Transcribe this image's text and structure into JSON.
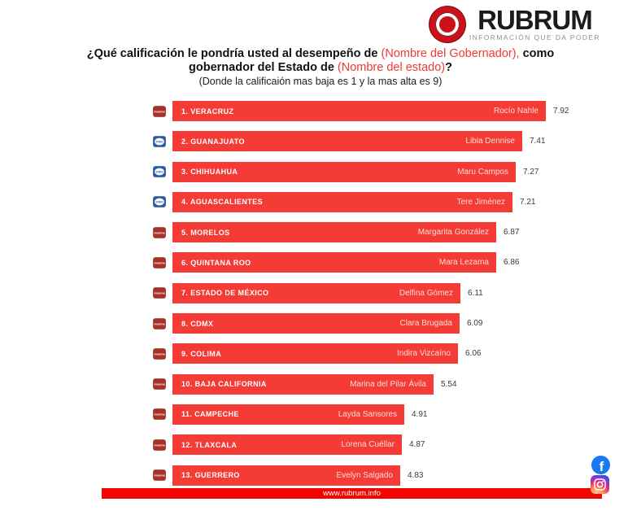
{
  "brand": {
    "name": "RUBRUM",
    "tagline": "INFORMACIÓN QUE DA PODER"
  },
  "title": {
    "seg1": "¿Qué calificación le pondría usted al desempeño de ",
    "highlight1": "(Nombre del Gobernador),",
    "seg2": " como gobernador del Estado de ",
    "highlight2": "(Nombre del estado)",
    "seg3": "?",
    "subtitle": "(Donde la calificaión mas baja es 1 y la mas alta es 9)"
  },
  "colors": {
    "bar_red": "#f53b35",
    "highlight_red": "#ed3b36",
    "footer_red": "#f20500",
    "logo_red": "#c9121a",
    "morena_red": "#a93226",
    "pan_blue": "#2b5da7",
    "facebook_blue": "#1877f2"
  },
  "chart_data": {
    "type": "bar",
    "orientation": "horizontal",
    "title": "¿Qué calificación le pondría usted al desempeño de (Nombre del Gobernador), como gobernador del Estado de (Nombre del estado)?",
    "subtitle": "(Donde la calificaión mas baja es 1 y la mas alta es 9)",
    "value_range": [
      1,
      9
    ],
    "rows": [
      {
        "rank": 1,
        "state": "1. VERACRUZ",
        "governor": "Rocío Nahle",
        "value": 7.92,
        "party": "morena"
      },
      {
        "rank": 2,
        "state": "2. GUANAJUATO",
        "governor": "Libia Dennise",
        "value": 7.41,
        "party": "pan"
      },
      {
        "rank": 3,
        "state": "3. CHIHUAHUA",
        "governor": "Maru Campos",
        "value": 7.27,
        "party": "pan"
      },
      {
        "rank": 4,
        "state": "4. AGUASCALIENTES",
        "governor": "Tere Jiménez",
        "value": 7.21,
        "party": "pan"
      },
      {
        "rank": 5,
        "state": "5. MORELOS",
        "governor": "Margarita González",
        "value": 6.87,
        "party": "morena"
      },
      {
        "rank": 6,
        "state": "6. QUINTANA ROO",
        "governor": "Mara Lezama",
        "value": 6.86,
        "party": "morena"
      },
      {
        "rank": 7,
        "state": "7. ESTADO DE MÉXICO",
        "governor": "Delfina Gómez",
        "value": 6.11,
        "party": "morena"
      },
      {
        "rank": 8,
        "state": "8. CDMX",
        "governor": "Clara Brugada",
        "value": 6.09,
        "party": "morena"
      },
      {
        "rank": 9,
        "state": "9. COLIMA",
        "governor": "Indira Vizcaíno",
        "value": 6.06,
        "party": "morena"
      },
      {
        "rank": 10,
        "state": "10. BAJA CALIFORNIA",
        "governor": "Marina del Pilar Ávila",
        "value": 5.54,
        "party": "morena"
      },
      {
        "rank": 11,
        "state": "11. CAMPECHE",
        "governor": "Layda Sansores",
        "value": 4.91,
        "party": "morena"
      },
      {
        "rank": 12,
        "state": "12. TLAXCALA",
        "governor": "Lorena Cuéllar",
        "value": 4.87,
        "party": "morena"
      },
      {
        "rank": 13,
        "state": "13. GUERRERO",
        "governor": "Evelyn Salgado",
        "value": 4.83,
        "party": "morena"
      }
    ]
  },
  "footer": {
    "url": "www.rubrum.info"
  },
  "social": {
    "facebook": "facebook",
    "instagram": "instagram"
  }
}
